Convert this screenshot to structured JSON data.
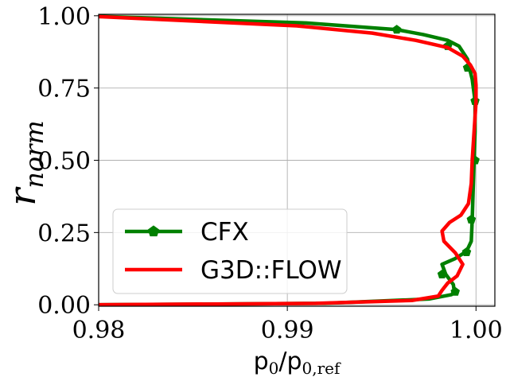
{
  "chart_data": {
    "type": "line",
    "xlim": [
      0.98,
      1.001
    ],
    "ylim": [
      -0.005,
      1.005
    ],
    "xticks": [
      0.98,
      0.99,
      1.0
    ],
    "xtick_labels": [
      "0.98",
      "0.99",
      "1.00"
    ],
    "yticks": [
      0.0,
      0.25,
      0.5,
      0.75,
      1.0
    ],
    "ytick_labels": [
      "0.00",
      "0.25",
      "0.50",
      "0.75",
      "1.00"
    ],
    "xlabel": {
      "main": "p",
      "sub0": "0",
      "mid": "/p",
      "sub1": "0,ref"
    },
    "ylabel": {
      "main": "r",
      "sub": "norm"
    },
    "grid": true,
    "legend_position": "lower-left",
    "series": [
      {
        "name": "CFX",
        "color": "#008000",
        "marker": "pentagon",
        "x": [
          0.98,
          0.992,
          0.9975,
          0.9987,
          0.99885,
          0.9988,
          0.9984,
          0.9982,
          0.9989,
          0.9995,
          0.99975,
          0.9998,
          0.99985,
          0.9999,
          0.99995,
          0.99995,
          0.9998,
          0.99965,
          0.99955,
          0.9991,
          0.9985,
          0.9972,
          0.9958,
          0.991,
          0.98
        ],
        "y": [
          0.0,
          0.005,
          0.02,
          0.035,
          0.045,
          0.07,
          0.105,
          0.14,
          0.16,
          0.185,
          0.22,
          0.295,
          0.4,
          0.5,
          0.6,
          0.705,
          0.78,
          0.82,
          0.85,
          0.895,
          0.915,
          0.935,
          0.952,
          0.975,
          0.998
        ],
        "markers": [
          [
            0.9989,
            0.045
          ],
          [
            0.9982,
            0.105
          ],
          [
            0.9995,
            0.182
          ],
          [
            0.99975,
            0.295
          ],
          [
            0.99995,
            0.5
          ],
          [
            0.99995,
            0.705
          ],
          [
            0.99955,
            0.82
          ],
          [
            0.9985,
            0.895
          ],
          [
            0.9958,
            0.952
          ]
        ]
      },
      {
        "name": "G3D::FLOW",
        "color": "#ff0000",
        "marker": "none",
        "x": [
          0.98,
          0.9915,
          0.9966,
          0.998,
          0.9982,
          0.9985,
          0.999,
          0.9993,
          0.9989,
          0.9983,
          0.9982,
          0.9986,
          0.9992,
          0.9996,
          0.99975,
          0.9998,
          0.9999,
          1.0,
          1.0,
          0.99995,
          0.9997,
          0.9993,
          0.9985,
          0.9968,
          0.9945,
          0.9905,
          0.98
        ],
        "y": [
          0.0,
          0.005,
          0.015,
          0.03,
          0.05,
          0.075,
          0.1,
          0.14,
          0.18,
          0.22,
          0.255,
          0.285,
          0.31,
          0.35,
          0.42,
          0.5,
          0.6,
          0.7,
          0.76,
          0.8,
          0.83,
          0.86,
          0.89,
          0.915,
          0.94,
          0.965,
          0.997
        ]
      }
    ]
  }
}
